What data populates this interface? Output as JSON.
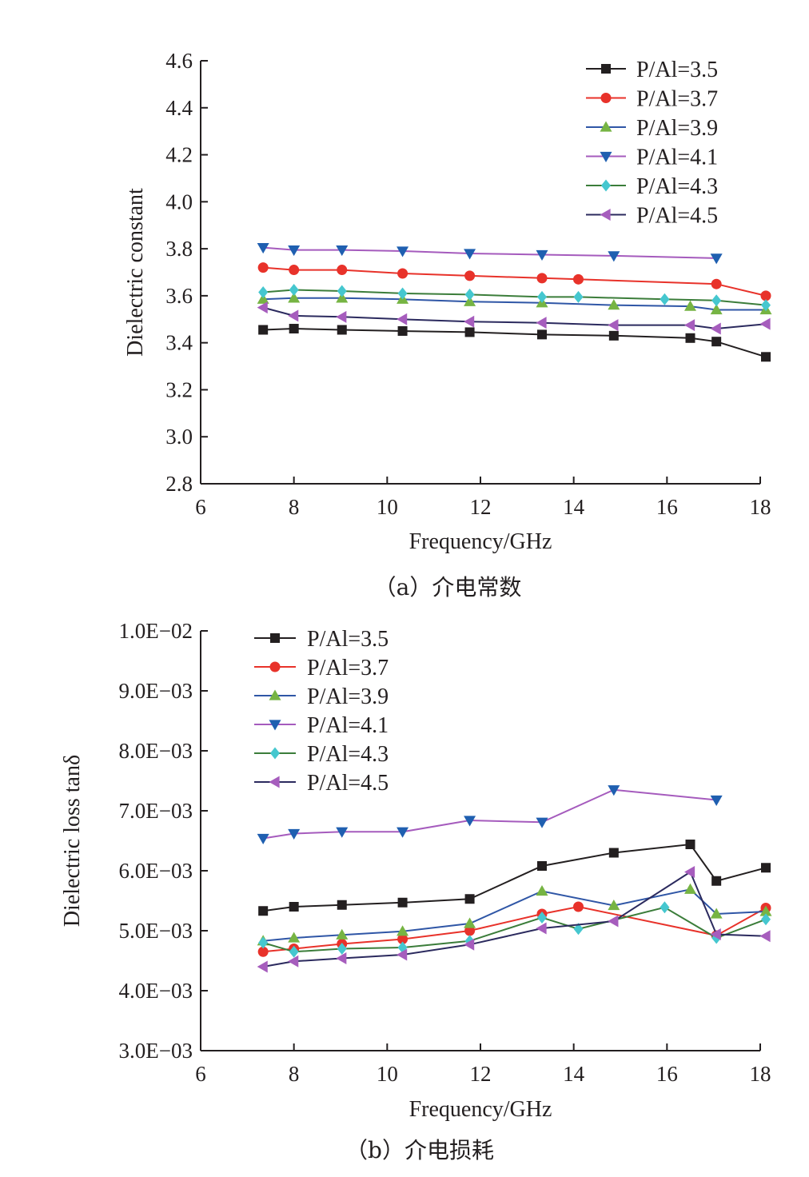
{
  "chart_data": [
    {
      "id": "a",
      "type": "line",
      "caption": "（a）介电常数",
      "xlabel": "Frequency/GHz",
      "ylabel": "Dielectric constant",
      "xlim": [
        6,
        18
      ],
      "ylim": [
        2.8,
        4.6
      ],
      "xticks": [
        "6",
        "8",
        "10",
        "12",
        "14",
        "16",
        "18"
      ],
      "yticks": [
        "2.8",
        "3.0",
        "3.2",
        "3.4",
        "3.6",
        "3.8",
        "4.0",
        "4.2",
        "4.4",
        "4.6"
      ],
      "legend_position": "top-right",
      "series": [
        {
          "name": "P/Al=3.5",
          "color": "#231f20",
          "marker": "square",
          "x": [
            7.34,
            8.0,
            9.03,
            10.33,
            11.77,
            13.32,
            14.86,
            16.5,
            17.06,
            18.12
          ],
          "y": [
            3.455,
            3.46,
            3.455,
            3.45,
            3.445,
            3.435,
            3.43,
            3.42,
            3.405,
            3.34
          ]
        },
        {
          "name": "P/Al=3.7",
          "color": "#e8322a",
          "marker": "circle",
          "x": [
            7.34,
            8.0,
            9.03,
            10.33,
            11.77,
            13.32,
            14.1,
            17.06,
            18.12
          ],
          "y": [
            3.72,
            3.71,
            3.71,
            3.695,
            3.685,
            3.675,
            3.67,
            3.65,
            3.6
          ]
        },
        {
          "name": "P/Al=3.9",
          "color": "#2f56a6",
          "marker": "triangle-up",
          "marker_color": "#76b443",
          "x": [
            7.34,
            8.0,
            9.03,
            10.33,
            11.77,
            13.32,
            14.86,
            16.5,
            17.06,
            18.12
          ],
          "y": [
            3.585,
            3.59,
            3.59,
            3.585,
            3.575,
            3.57,
            3.56,
            3.555,
            3.54,
            3.54
          ]
        },
        {
          "name": "P/Al=4.1",
          "color": "#a55bbd",
          "marker": "triangle-down",
          "marker_color": "#1f5fb0",
          "x": [
            7.34,
            8.0,
            9.03,
            10.33,
            11.77,
            13.32,
            14.86,
            17.06
          ],
          "y": [
            3.805,
            3.795,
            3.795,
            3.79,
            3.78,
            3.775,
            3.77,
            3.76
          ]
        },
        {
          "name": "P/Al=4.3",
          "color": "#3b7d3a",
          "marker": "diamond",
          "marker_color": "#45c7cf",
          "x": [
            7.34,
            8.0,
            9.03,
            10.33,
            11.77,
            13.32,
            14.1,
            15.95,
            17.06,
            18.12
          ],
          "y": [
            3.615,
            3.625,
            3.62,
            3.61,
            3.605,
            3.595,
            3.595,
            3.585,
            3.58,
            3.56
          ]
        },
        {
          "name": "P/Al=4.5",
          "color": "#2b2a5e",
          "marker": "triangle-left",
          "marker_color": "#a65dbd",
          "x": [
            7.34,
            8.0,
            9.03,
            10.33,
            11.77,
            13.32,
            14.86,
            16.5,
            17.06,
            18.12
          ],
          "y": [
            3.55,
            3.515,
            3.51,
            3.5,
            3.49,
            3.485,
            3.475,
            3.475,
            3.46,
            3.48
          ]
        }
      ]
    },
    {
      "id": "b",
      "type": "line",
      "caption": "（b）介电损耗",
      "xlabel": "Frequency/GHz",
      "ylabel": "Dielectric loss tanδ",
      "xlim": [
        6,
        18
      ],
      "ylim": [
        0.003,
        0.01
      ],
      "xticks": [
        "6",
        "8",
        "10",
        "12",
        "14",
        "16",
        "18"
      ],
      "yticks": [
        "3.0E−03",
        "4.0E−03",
        "5.0E−03",
        "6.0E−03",
        "7.0E−03",
        "8.0E−03",
        "9.0E−03",
        "1.0E−02"
      ],
      "legend_position": "top-left",
      "series": [
        {
          "name": "P/Al=3.5",
          "color": "#231f20",
          "marker": "square",
          "x": [
            7.34,
            8.0,
            9.03,
            10.33,
            11.77,
            13.32,
            14.86,
            16.5,
            17.06,
            18.12
          ],
          "y": [
            0.00533,
            0.0054,
            0.00543,
            0.00547,
            0.00553,
            0.00608,
            0.0063,
            0.00644,
            0.00583,
            0.00605
          ]
        },
        {
          "name": "P/Al=3.7",
          "color": "#e8322a",
          "marker": "circle",
          "x": [
            7.34,
            8.0,
            9.03,
            10.33,
            11.77,
            13.32,
            14.1,
            17.06,
            18.12
          ],
          "y": [
            0.00465,
            0.0047,
            0.00478,
            0.00486,
            0.005,
            0.00528,
            0.0054,
            0.00492,
            0.00538
          ]
        },
        {
          "name": "P/Al=3.9",
          "color": "#2f56a6",
          "marker": "triangle-up",
          "marker_color": "#76b443",
          "x": [
            7.34,
            8.0,
            9.03,
            10.33,
            11.77,
            13.32,
            14.86,
            16.5,
            17.06,
            18.12
          ],
          "y": [
            0.00483,
            0.00488,
            0.00493,
            0.00499,
            0.00512,
            0.00566,
            0.00542,
            0.00569,
            0.00528,
            0.00532
          ]
        },
        {
          "name": "P/Al=4.1",
          "color": "#a55bbd",
          "marker": "triangle-down",
          "marker_color": "#1f5fb0",
          "x": [
            7.34,
            8.0,
            9.03,
            10.33,
            11.77,
            13.32,
            14.86,
            17.06
          ],
          "y": [
            0.00654,
            0.00662,
            0.00665,
            0.00665,
            0.00684,
            0.00681,
            0.00735,
            0.00718
          ]
        },
        {
          "name": "P/Al=4.3",
          "color": "#3b7d3a",
          "marker": "diamond",
          "marker_color": "#45c7cf",
          "x": [
            7.34,
            8.0,
            9.03,
            10.33,
            11.77,
            13.32,
            14.1,
            15.95,
            17.06,
            18.12
          ],
          "y": [
            0.0048,
            0.00465,
            0.0047,
            0.00472,
            0.00483,
            0.00522,
            0.00503,
            0.00539,
            0.00488,
            0.00519
          ]
        },
        {
          "name": "P/Al=4.5",
          "color": "#2b2a5e",
          "marker": "triangle-left",
          "marker_color": "#a65dbd",
          "x": [
            7.34,
            8.0,
            9.03,
            10.33,
            11.77,
            13.32,
            14.86,
            16.5,
            17.06,
            18.12
          ],
          "y": [
            0.0044,
            0.00449,
            0.00454,
            0.0046,
            0.00477,
            0.00504,
            0.00516,
            0.00598,
            0.00494,
            0.00491
          ]
        }
      ]
    }
  ]
}
